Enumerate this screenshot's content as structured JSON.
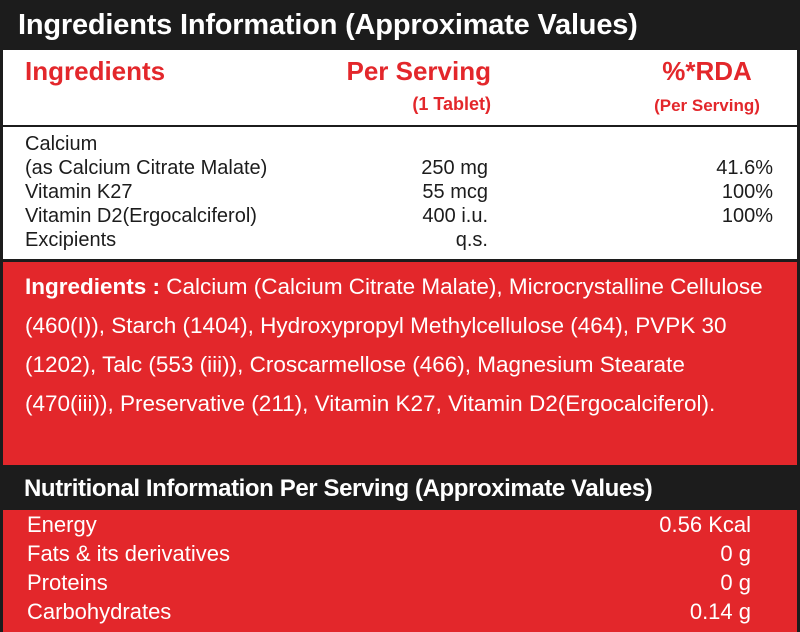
{
  "header": {
    "title": "Ingredients Information (Approximate Values)"
  },
  "table": {
    "columns": [
      {
        "title": "Ingredients"
      },
      {
        "title": "Per Serving",
        "subtitle": "(1 Tablet)"
      },
      {
        "title": "%*RDA",
        "subtitle": "(Per Serving)"
      }
    ],
    "rows": [
      {
        "name": [
          "Calcium",
          "(as Calcium Citrate Malate)"
        ],
        "amount": "250 mg",
        "rda": "41.6%"
      },
      {
        "name": [
          "Vitamin K27"
        ],
        "amount": "55 mcg",
        "rda": "100%"
      },
      {
        "name": [
          "Vitamin D2(Ergocalciferol)"
        ],
        "amount": "400 i.u.",
        "rda": "100%"
      },
      {
        "name": [
          "Excipients"
        ],
        "amount": "q.s."
      }
    ]
  },
  "ingredients": {
    "label": "Ingredients :",
    "text": "Calcium (Calcium Citrate Malate), Microcrystalline Cellulose (460(I)), Starch (1404), Hydroxypropyl Methylcellulose (464), PVPK 30 (1202), Talc (553 (iii)), Croscarmellose (466), Magnesium Stearate (470(iii)), Preservative (211), Vitamin K27, Vitamin D2(Ergocalciferol)."
  },
  "nutrition": {
    "title": "Nutritional Information Per Serving (Approximate Values)",
    "rows": [
      {
        "name": "Energy",
        "value": "0.56 Kcal"
      },
      {
        "name": "Fats & its derivatives",
        "value": "0 g"
      },
      {
        "name": "Proteins",
        "value": "0 g"
      },
      {
        "name": "Carbohydrates",
        "value": "0.14 g"
      }
    ]
  }
}
